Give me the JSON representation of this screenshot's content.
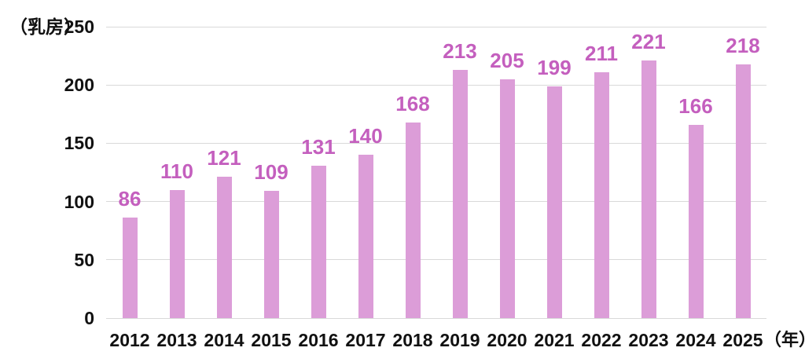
{
  "chart_data": {
    "type": "bar",
    "title": "",
    "unit_label": "（乳房）",
    "x_axis_suffix": "（年）",
    "categories": [
      "2012",
      "2013",
      "2014",
      "2015",
      "2016",
      "2017",
      "2018",
      "2019",
      "2020",
      "2021",
      "2022",
      "2023",
      "2024",
      "2025"
    ],
    "values": [
      86,
      110,
      121,
      109,
      131,
      140,
      168,
      213,
      205,
      199,
      211,
      221,
      166,
      218
    ],
    "ylabel": "乳房",
    "xlabel": "年",
    "ylim": [
      0,
      250
    ],
    "y_ticks": [
      0,
      50,
      100,
      150,
      200,
      250
    ],
    "grid": true,
    "legend_position": "none",
    "data_labels": true,
    "colors": {
      "bar_fill": "#DC9DD8",
      "data_label": "#C45FBE",
      "gridline": "#D9D9D9",
      "axis_text": "#111111",
      "background": "#FFFFFF"
    }
  }
}
